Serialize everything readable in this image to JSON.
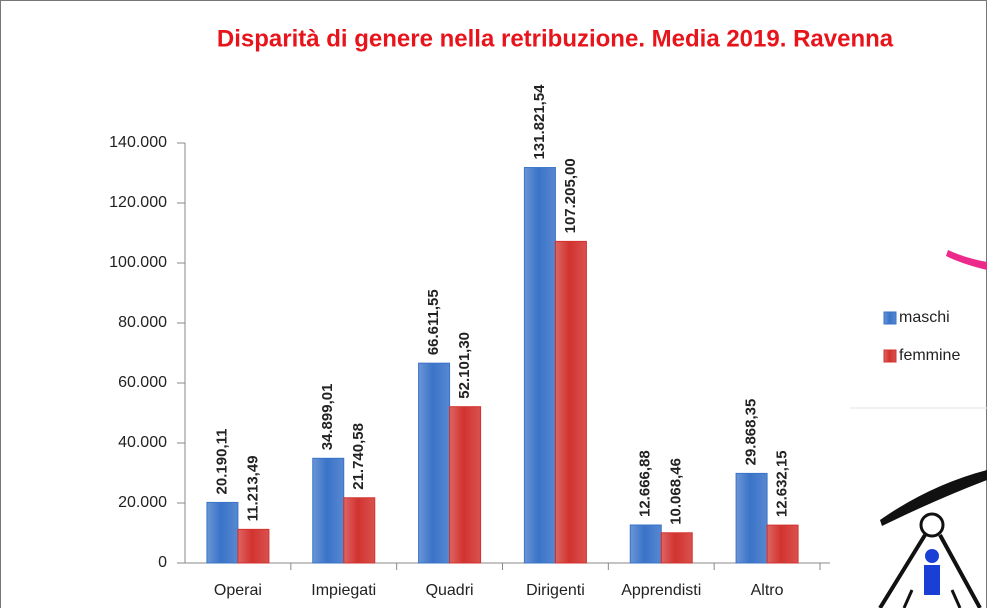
{
  "chart_data": {
    "type": "bar",
    "title": "Disparità di genere nella retribuzione. Media 2019. Ravenna",
    "categories": [
      "Operai",
      "Impiegati",
      "Quadri",
      "Dirigenti",
      "Apprendisti",
      "Altro"
    ],
    "series": [
      {
        "name": "maschi",
        "color": "#3a73c8",
        "values": [
          20190.11,
          34899.01,
          66611.55,
          131821.54,
          12666.88,
          29868.35
        ],
        "value_labels": [
          "20.190,11",
          "34.899,01",
          "66.611,55",
          "131.821,54",
          "12.666,88",
          "29.868,35"
        ]
      },
      {
        "name": "femmine",
        "color": "#d2332f",
        "values": [
          11213.49,
          21740.58,
          52101.3,
          107205.0,
          10068.46,
          12632.15
        ],
        "value_labels": [
          "11.213,49",
          "21.740,58",
          "52.101,30",
          "107.205,00",
          "10.068,46",
          "12.632,15"
        ]
      }
    ],
    "ylim": [
      0,
      140000
    ],
    "yticks": [
      0,
      {
        "value": 20000,
        "label": "20.000"
      },
      {
        "value": 40000,
        "label": "40.000"
      },
      {
        "value": 60000,
        "label": "60.000"
      },
      {
        "value": 80000,
        "label": "80.000"
      },
      {
        "value": 100000,
        "label": "100.000"
      },
      {
        "value": 120000,
        "label": "120.000"
      },
      {
        "value": 140000,
        "label": "140.000"
      }
    ],
    "legend": "right"
  }
}
